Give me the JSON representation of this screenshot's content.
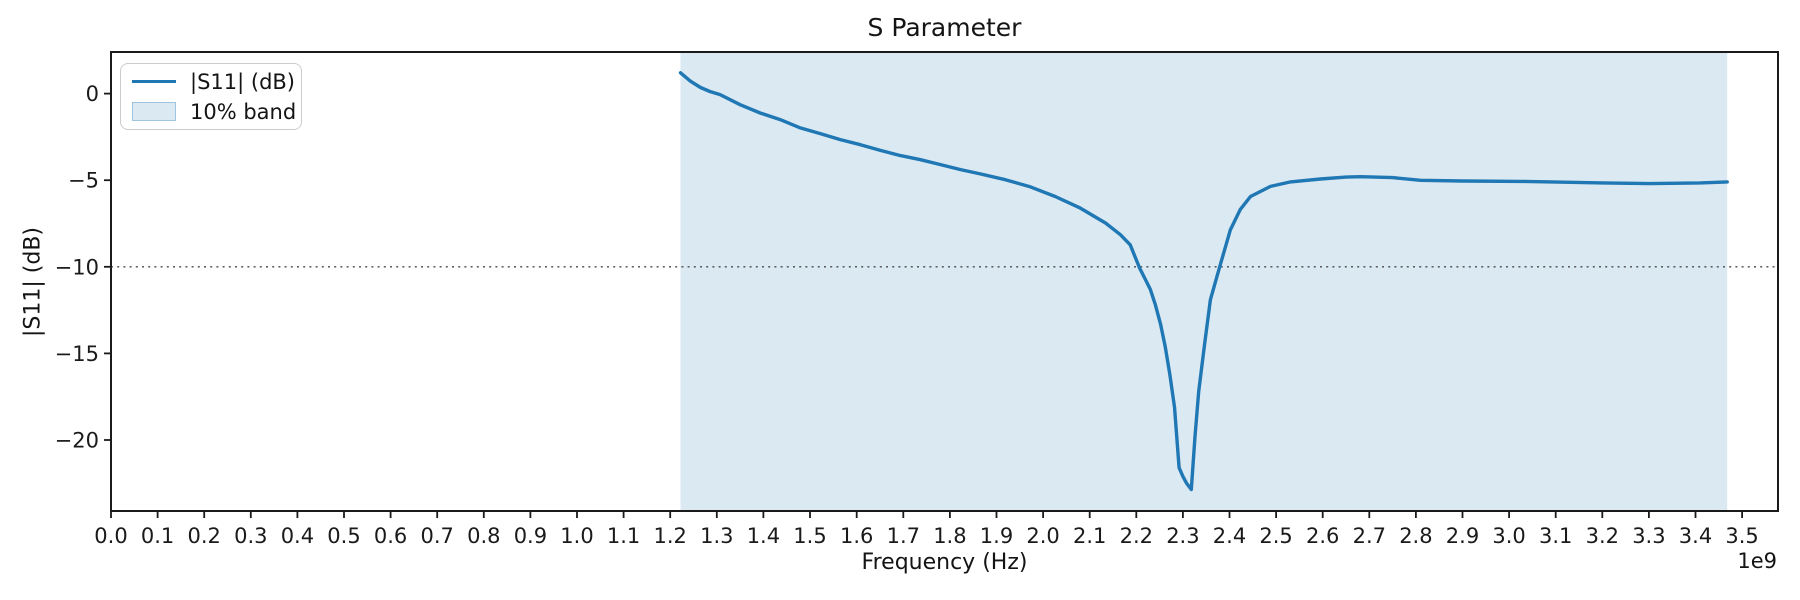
{
  "chart_data": {
    "type": "line",
    "title": "S Parameter",
    "xlabel": "Frequency (Hz)",
    "ylabel": "|S11| (dB)",
    "x_offset_label": "1e9",
    "x_unit_ghz": true,
    "xlim_ghz": [
      0,
      3.577
    ],
    "ylim_db": [
      -24.1,
      2.4
    ],
    "grid": false,
    "x_ticks_ghz": [
      0.0,
      0.1,
      0.2,
      0.3,
      0.4,
      0.5,
      0.6,
      0.7,
      0.8,
      0.9,
      1.0,
      1.1,
      1.2,
      1.3,
      1.4,
      1.5,
      1.6,
      1.7,
      1.8,
      1.9,
      2.0,
      2.1,
      2.2,
      2.3,
      2.4,
      2.5,
      2.6,
      2.7,
      2.8,
      2.9,
      3.0,
      3.1,
      3.2,
      3.3,
      3.4,
      3.5
    ],
    "y_ticks_db": [
      0,
      -5,
      -10,
      -15,
      -20
    ],
    "threshold_db": -10,
    "band": {
      "label": "10% band",
      "start_ghz": 1.222,
      "end_ghz": 3.468,
      "fill": "#1f77b4",
      "fill_opacity": 0.16
    },
    "series": [
      {
        "name": "|S11| (dB)",
        "color": "#1f77b4",
        "x_ghz": [
          1.222,
          1.243,
          1.265,
          1.285,
          1.307,
          1.35,
          1.393,
          1.436,
          1.479,
          1.522,
          1.565,
          1.608,
          1.651,
          1.694,
          1.737,
          1.78,
          1.823,
          1.865,
          1.919,
          1.973,
          2.026,
          2.08,
          2.134,
          2.166,
          2.187,
          2.207,
          2.23,
          2.241,
          2.252,
          2.262,
          2.272,
          2.282,
          2.292,
          2.3,
          2.308,
          2.318,
          2.326,
          2.334,
          2.346,
          2.359,
          2.379,
          2.402,
          2.423,
          2.445,
          2.488,
          2.531,
          2.595,
          2.65,
          2.681,
          2.75,
          2.81,
          2.9,
          3.025,
          3.09,
          3.2,
          3.3,
          3.41,
          3.468
        ],
        "y_db": [
          1.2,
          0.72,
          0.35,
          0.12,
          -0.06,
          -0.64,
          -1.12,
          -1.5,
          -1.98,
          -2.31,
          -2.66,
          -2.95,
          -3.28,
          -3.58,
          -3.82,
          -4.1,
          -4.39,
          -4.64,
          -4.97,
          -5.39,
          -5.94,
          -6.61,
          -7.47,
          -8.15,
          -8.73,
          -10.06,
          -11.3,
          -12.2,
          -13.3,
          -14.6,
          -16.2,
          -18.1,
          -21.6,
          -22.1,
          -22.5,
          -22.86,
          -19.8,
          -17.2,
          -14.6,
          -11.9,
          -10.0,
          -7.86,
          -6.7,
          -5.94,
          -5.36,
          -5.1,
          -4.93,
          -4.82,
          -4.8,
          -4.85,
          -5.01,
          -5.05,
          -5.07,
          -5.1,
          -5.16,
          -5.2,
          -5.16,
          -5.1
        ]
      }
    ],
    "legend": {
      "position": "upper-left",
      "entries": [
        "|S11| (dB)",
        "10% band"
      ]
    },
    "resonance": {
      "notch_freq_ghz": 2.318,
      "notch_depth_db": -22.9
    }
  }
}
